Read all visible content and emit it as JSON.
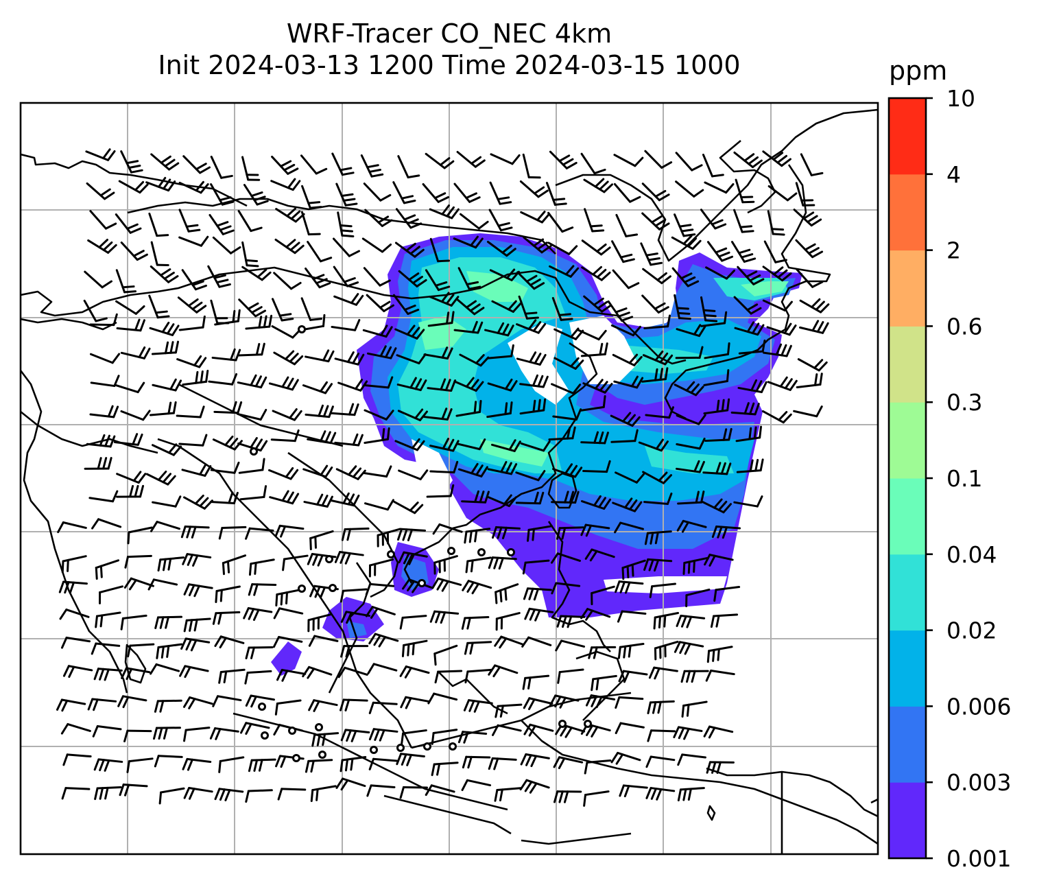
{
  "title": {
    "line1": "WRF-Tracer CO_NEC 4km",
    "line2": "Init 2024-03-13 1200 Time 2024-03-15 1000"
  },
  "colorbar": {
    "unit": "ppm",
    "ticks": [
      "0.001",
      "0.003",
      "0.006",
      "0.02",
      "0.04",
      "0.1",
      "0.3",
      "0.6",
      "2",
      "4",
      "10"
    ],
    "colors": [
      "#6128fb",
      "#3275f3",
      "#02b2e9",
      "#31e1d7",
      "#6afdb9",
      "#9efb95",
      "#d0e389",
      "#ffae63",
      "#ff713a",
      "#ff2c16"
    ]
  },
  "map": {
    "gridlines": true,
    "field_colors": {
      "level1": "#6128fb",
      "level2": "#3275f3",
      "level3": "#02b2e9",
      "level4": "#31e1d7",
      "level5": "#6afdb9"
    },
    "coastline_color": "#000000",
    "gridline_color": "#b0b0b0",
    "wind_barb_color": "#000000"
  }
}
